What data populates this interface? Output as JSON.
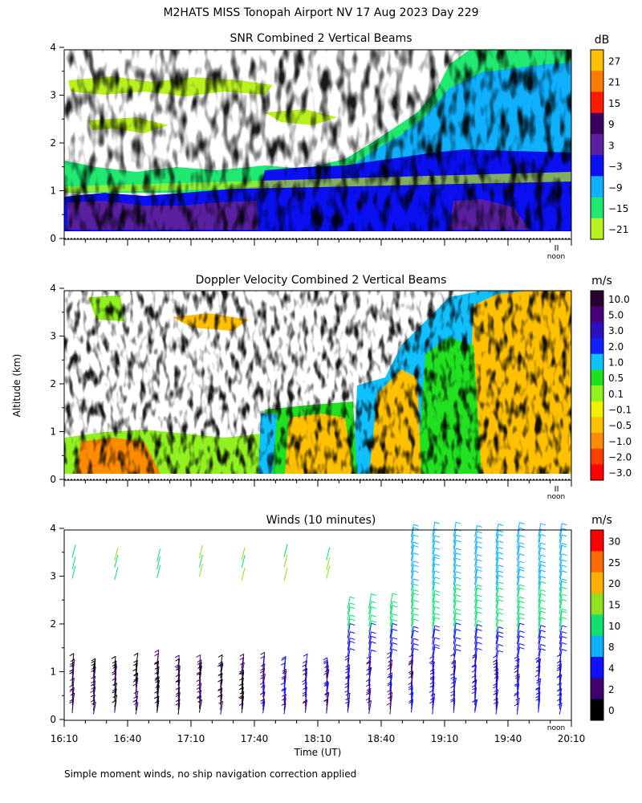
{
  "title": "M2HATS MISS Tonopah Airport NV  17 Aug 2023 Day 229",
  "ylabel": "Altitude (km)",
  "xlabel": "Time (UT)",
  "noon_label": "noon",
  "footnote": "Simple moment winds, no ship navigation correction applied",
  "x_ticks": [
    "16:10",
    "16:40",
    "17:10",
    "17:40",
    "18:10",
    "18:40",
    "19:10",
    "19:40",
    "20:10"
  ],
  "chart_data": [
    {
      "type": "heatmap",
      "title": "SNR Combined 2 Vertical Beams",
      "colorbar_unit": "dB",
      "colorbar_ticks": [
        "27",
        "21",
        "15",
        "9",
        "3",
        "−3",
        "−9",
        "−15",
        "−21"
      ],
      "colorbar_colors": [
        "#ffc000",
        "#ff7a00",
        "#ff1a00",
        "#3a0060",
        "#5a20a0",
        "#0a10f0",
        "#10b0ff",
        "#20e870",
        "#b8f020"
      ],
      "x_range": [
        "16:10",
        "20:10"
      ],
      "y_ticks": [
        0,
        1,
        2,
        3,
        4
      ],
      "ylim": [
        0,
        4
      ]
    },
    {
      "type": "heatmap",
      "title": "Doppler Velocity Combined 2 Vertical Beams",
      "colorbar_unit": "m/s",
      "colorbar_ticks": [
        "10.0",
        "5.0",
        "3.0",
        "2.0",
        "1.0",
        "0.5",
        "0.1",
        "−0.1",
        "−0.5",
        "−1.0",
        "−2.0",
        "−3.0"
      ],
      "colorbar_colors": [
        "#2a0030",
        "#4a007a",
        "#2a10c0",
        "#1020ff",
        "#10c0ff",
        "#20e020",
        "#90f020",
        "#f0f000",
        "#ffc000",
        "#ff8c00",
        "#ff4000",
        "#ff0000"
      ],
      "x_range": [
        "16:10",
        "20:10"
      ],
      "y_ticks": [
        0,
        1,
        2,
        3,
        4
      ],
      "ylim": [
        0,
        4
      ]
    },
    {
      "type": "scatter",
      "title": "Winds (10 minutes)",
      "colorbar_unit": "m/s",
      "colorbar_ticks": [
        "30",
        "25",
        "20",
        "15",
        "10",
        "8",
        "4",
        "2",
        "0"
      ],
      "colorbar_colors": [
        "#ff0000",
        "#ff6a00",
        "#ffb000",
        "#90e020",
        "#10e070",
        "#10b0ff",
        "#1010ff",
        "#400070",
        "#000000"
      ],
      "x_range": [
        "16:10",
        "20:10"
      ],
      "y_ticks": [
        0,
        1,
        2,
        3,
        4
      ],
      "ylim": [
        0,
        4
      ]
    }
  ]
}
